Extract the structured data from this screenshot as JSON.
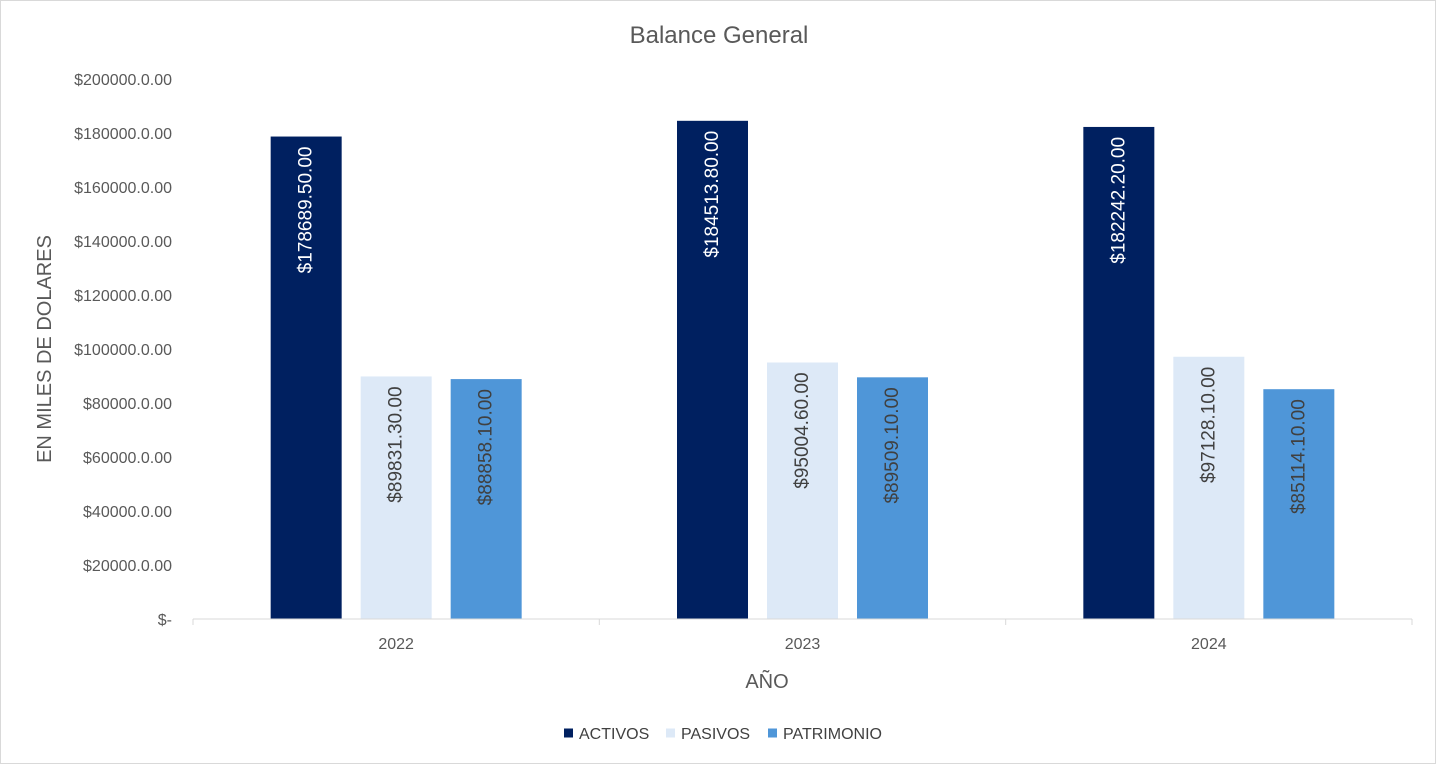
{
  "chart_data": {
    "type": "bar",
    "title": "Balance General",
    "xlabel": "AÑO",
    "ylabel": "EN MILES DE DOLARES",
    "categories": [
      "2022",
      "2023",
      "2024"
    ],
    "ylim": [
      0,
      200000
    ],
    "yticks": [
      {
        "value": 0,
        "label": "$-"
      },
      {
        "value": 20000,
        "label": "$20000.0.00"
      },
      {
        "value": 40000,
        "label": "$40000.0.00"
      },
      {
        "value": 60000,
        "label": "$60000.0.00"
      },
      {
        "value": 80000,
        "label": "$80000.0.00"
      },
      {
        "value": 100000,
        "label": "$100000.0.00"
      },
      {
        "value": 120000,
        "label": "$120000.0.00"
      },
      {
        "value": 140000,
        "label": "$140000.0.00"
      },
      {
        "value": 160000,
        "label": "$160000.0.00"
      },
      {
        "value": 180000,
        "label": "$180000.0.00"
      },
      {
        "value": 200000,
        "label": "$200000.0.00"
      }
    ],
    "grid": false,
    "legend_position": "bottom",
    "series": [
      {
        "name": "ACTIVOS",
        "color": "#002060",
        "label_color": "#ffffff",
        "values": [
          178689.5,
          184513.8,
          182242.2
        ],
        "labels": [
          "$178689.50.00",
          "$184513.80.00",
          "$182242.20.00"
        ]
      },
      {
        "name": "PASIVOS",
        "color": "#dde9f7",
        "label_color": "#404040",
        "values": [
          89831.3,
          95004.6,
          97128.1
        ],
        "labels": [
          "$89831.30.00",
          "$95004.60.00",
          "$97128.10.00"
        ]
      },
      {
        "name": "PATRIMONIO",
        "color": "#4f96d8",
        "label_color": "#404040",
        "values": [
          88858.1,
          89509.1,
          85114.1
        ],
        "labels": [
          "$88858.10.00",
          "$89509.10.00",
          "$85114.10.00"
        ]
      }
    ]
  }
}
